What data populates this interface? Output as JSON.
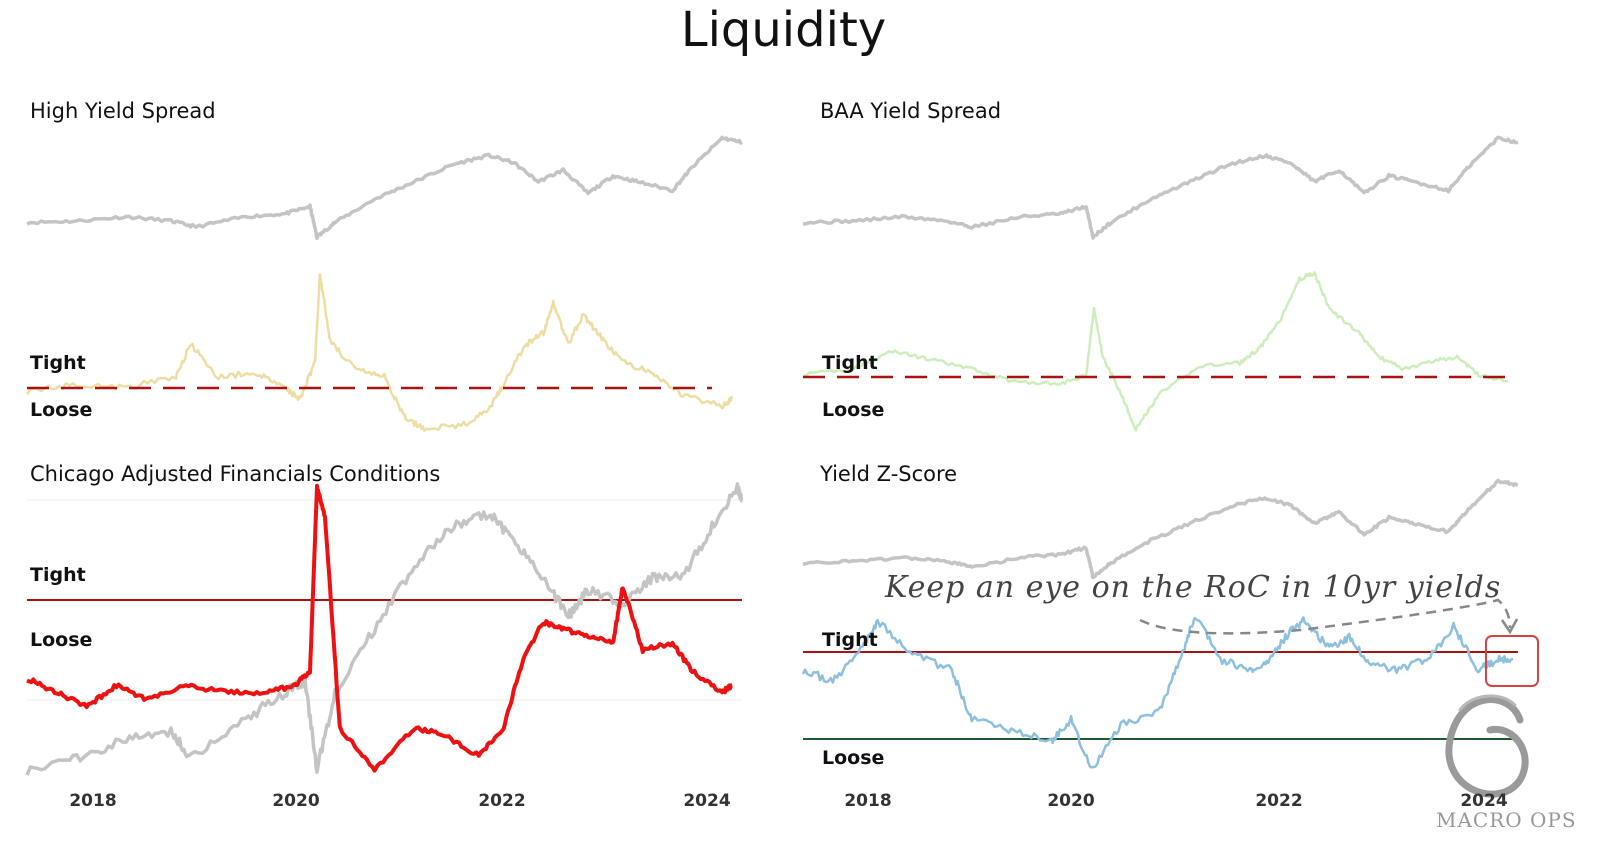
{
  "title": "Liquidity",
  "annotation": "Keep an eye on the RoC in 10yr yields",
  "logo": "MACRO OPS",
  "colors": {
    "price": "#c4c4c4",
    "hy": "#eedda3",
    "baa": "#cdeebb",
    "chicago": "#ee1111",
    "zscore": "#8cc0de",
    "dashed": "#aa1111",
    "tight_line": "#aa1111",
    "loose_line": "#1d5a2f",
    "highlight": "#d84343"
  },
  "chart_data": [
    {
      "type": "line",
      "title": "High Yield Spread",
      "x_ticks": [
        "2018",
        "2020",
        "2022",
        "2024"
      ],
      "labels": {
        "upper": "Tight",
        "lower": "Loose"
      },
      "xlim": [
        2017.3,
        2024.5
      ],
      "series": [
        {
          "values": [
            [
              2017.3,
              0.92
            ],
            [
              2017.8,
              0.93
            ],
            [
              2018.3,
              0.96
            ],
            [
              2018.75,
              0.93
            ],
            [
              2019.0,
              0.89
            ],
            [
              2019.5,
              0.96
            ],
            [
              2019.9,
              0.98
            ],
            [
              2020.15,
              1.03
            ],
            [
              2020.22,
              0.82
            ],
            [
              2020.4,
              0.92
            ],
            [
              2020.8,
              1.08
            ],
            [
              2021.2,
              1.2
            ],
            [
              2021.6,
              1.32
            ],
            [
              2021.95,
              1.38
            ],
            [
              2022.2,
              1.33
            ],
            [
              2022.45,
              1.2
            ],
            [
              2022.7,
              1.28
            ],
            [
              2022.95,
              1.12
            ],
            [
              2023.2,
              1.24
            ],
            [
              2023.45,
              1.2
            ],
            [
              2023.8,
              1.14
            ],
            [
              2024.0,
              1.3
            ],
            [
              2024.3,
              1.5
            ],
            [
              2024.5,
              1.47
            ]
          ]
        },
        {
          "values": [
            [
              2017.3,
              -0.1
            ],
            [
              2017.8,
              0.0
            ],
            [
              2018.3,
              -0.05
            ],
            [
              2018.8,
              0.1
            ],
            [
              2018.95,
              0.55
            ],
            [
              2019.2,
              0.1
            ],
            [
              2019.6,
              0.15
            ],
            [
              2019.9,
              -0.05
            ],
            [
              2020.05,
              -0.2
            ],
            [
              2020.2,
              0.3
            ],
            [
              2020.25,
              1.5
            ],
            [
              2020.35,
              0.6
            ],
            [
              2020.6,
              0.2
            ],
            [
              2020.9,
              0.1
            ],
            [
              2021.1,
              -0.45
            ],
            [
              2021.3,
              -0.6
            ],
            [
              2021.7,
              -0.55
            ],
            [
              2021.95,
              -0.35
            ],
            [
              2022.1,
              0.0
            ],
            [
              2022.3,
              0.5
            ],
            [
              2022.5,
              0.7
            ],
            [
              2022.6,
              1.1
            ],
            [
              2022.75,
              0.55
            ],
            [
              2022.9,
              0.95
            ],
            [
              2023.1,
              0.6
            ],
            [
              2023.3,
              0.3
            ],
            [
              2023.6,
              0.15
            ],
            [
              2023.9,
              -0.15
            ],
            [
              2024.3,
              -0.3
            ],
            [
              2024.4,
              -0.2
            ]
          ]
        }
      ]
    },
    {
      "type": "line",
      "title": "BAA Yield Spread",
      "x_ticks": [
        "2018",
        "2020",
        "2022",
        "2024"
      ],
      "labels": {
        "upper": "Tight",
        "lower": "Loose"
      },
      "xlim": [
        2017.3,
        2024.5
      ],
      "series": [
        {
          "values": [
            [
              2017.3,
              0.92
            ],
            [
              2017.8,
              0.93
            ],
            [
              2018.3,
              0.96
            ],
            [
              2018.75,
              0.93
            ],
            [
              2019.0,
              0.89
            ],
            [
              2019.5,
              0.96
            ],
            [
              2019.9,
              0.98
            ],
            [
              2020.15,
              1.03
            ],
            [
              2020.22,
              0.82
            ],
            [
              2020.4,
              0.92
            ],
            [
              2020.8,
              1.08
            ],
            [
              2021.2,
              1.2
            ],
            [
              2021.6,
              1.32
            ],
            [
              2021.95,
              1.38
            ],
            [
              2022.2,
              1.33
            ],
            [
              2022.45,
              1.2
            ],
            [
              2022.7,
              1.28
            ],
            [
              2022.95,
              1.12
            ],
            [
              2023.2,
              1.24
            ],
            [
              2023.45,
              1.2
            ],
            [
              2023.8,
              1.14
            ],
            [
              2024.0,
              1.3
            ],
            [
              2024.3,
              1.5
            ],
            [
              2024.5,
              1.47
            ]
          ]
        },
        {
          "values": [
            [
              2017.3,
              0.0
            ],
            [
              2017.8,
              0.1
            ],
            [
              2018.2,
              0.4
            ],
            [
              2018.6,
              0.25
            ],
            [
              2019.0,
              0.1
            ],
            [
              2019.4,
              -0.1
            ],
            [
              2019.9,
              -0.15
            ],
            [
              2020.15,
              0.0
            ],
            [
              2020.23,
              1.1
            ],
            [
              2020.32,
              0.3
            ],
            [
              2020.5,
              -0.3
            ],
            [
              2020.65,
              -0.9
            ],
            [
              2020.9,
              -0.3
            ],
            [
              2021.3,
              0.15
            ],
            [
              2021.7,
              0.2
            ],
            [
              2021.9,
              0.45
            ],
            [
              2022.1,
              0.9
            ],
            [
              2022.3,
              1.6
            ],
            [
              2022.45,
              1.7
            ],
            [
              2022.6,
              1.1
            ],
            [
              2022.9,
              0.7
            ],
            [
              2023.1,
              0.3
            ],
            [
              2023.35,
              0.1
            ],
            [
              2023.7,
              0.25
            ],
            [
              2023.9,
              0.3
            ],
            [
              2024.1,
              0.0
            ],
            [
              2024.4,
              -0.1
            ]
          ]
        }
      ]
    },
    {
      "type": "line",
      "title": "Chicago Adjusted Financials Conditions",
      "x_ticks": [
        "2018",
        "2020",
        "2022",
        "2024"
      ],
      "labels": {
        "upper": "Tight",
        "lower": "Loose"
      },
      "xlim": [
        2017.3,
        2024.5
      ],
      "series": [
        {
          "values": [
            [
              2017.3,
              0.0
            ],
            [
              2017.8,
              0.05
            ],
            [
              2018.3,
              0.12
            ],
            [
              2018.75,
              0.15
            ],
            [
              2018.95,
              0.05
            ],
            [
              2019.5,
              0.2
            ],
            [
              2019.9,
              0.3
            ],
            [
              2020.1,
              0.35
            ],
            [
              2020.22,
              0.0
            ],
            [
              2020.4,
              0.3
            ],
            [
              2020.8,
              0.55
            ],
            [
              2021.2,
              0.8
            ],
            [
              2021.6,
              0.95
            ],
            [
              2021.95,
              1.0
            ],
            [
              2022.2,
              0.9
            ],
            [
              2022.5,
              0.75
            ],
            [
              2022.75,
              0.6
            ],
            [
              2022.95,
              0.7
            ],
            [
              2023.3,
              0.65
            ],
            [
              2023.6,
              0.75
            ],
            [
              2023.9,
              0.75
            ],
            [
              2024.2,
              0.95
            ],
            [
              2024.45,
              1.1
            ],
            [
              2024.5,
              1.05
            ]
          ]
        },
        {
          "values": [
            [
              2017.3,
              -0.85
            ],
            [
              2017.6,
              -0.95
            ],
            [
              2017.9,
              -1.05
            ],
            [
              2018.2,
              -0.9
            ],
            [
              2018.5,
              -1.0
            ],
            [
              2018.9,
              -0.9
            ],
            [
              2019.3,
              -0.95
            ],
            [
              2019.7,
              -0.95
            ],
            [
              2020.0,
              -0.9
            ],
            [
              2020.15,
              -0.8
            ],
            [
              2020.22,
              0.5
            ],
            [
              2020.3,
              0.3
            ],
            [
              2020.45,
              -1.2
            ],
            [
              2020.8,
              -1.5
            ],
            [
              2021.2,
              -1.2
            ],
            [
              2021.5,
              -1.25
            ],
            [
              2021.85,
              -1.4
            ],
            [
              2022.1,
              -1.2
            ],
            [
              2022.3,
              -0.7
            ],
            [
              2022.5,
              -0.45
            ],
            [
              2022.7,
              -0.5
            ],
            [
              2022.95,
              -0.55
            ],
            [
              2023.2,
              -0.6
            ],
            [
              2023.3,
              -0.2
            ],
            [
              2023.5,
              -0.65
            ],
            [
              2023.8,
              -0.6
            ],
            [
              2024.0,
              -0.8
            ],
            [
              2024.3,
              -0.95
            ],
            [
              2024.4,
              -0.9
            ]
          ]
        }
      ]
    },
    {
      "type": "line",
      "title": "Yield Z-Score",
      "x_ticks": [
        "2018",
        "2020",
        "2022",
        "2024"
      ],
      "labels": {
        "upper": "Tight",
        "lower": "Loose"
      },
      "xlim": [
        2017.3,
        2024.5
      ],
      "series": [
        {
          "values": [
            [
              2017.3,
              0.92
            ],
            [
              2017.8,
              0.93
            ],
            [
              2018.3,
              0.96
            ],
            [
              2018.75,
              0.93
            ],
            [
              2019.0,
              0.89
            ],
            [
              2019.5,
              0.96
            ],
            [
              2019.9,
              0.98
            ],
            [
              2020.15,
              1.03
            ],
            [
              2020.22,
              0.82
            ],
            [
              2020.4,
              0.92
            ],
            [
              2020.8,
              1.08
            ],
            [
              2021.2,
              1.2
            ],
            [
              2021.6,
              1.32
            ],
            [
              2021.95,
              1.38
            ],
            [
              2022.2,
              1.33
            ],
            [
              2022.45,
              1.2
            ],
            [
              2022.7,
              1.28
            ],
            [
              2022.95,
              1.12
            ],
            [
              2023.2,
              1.24
            ],
            [
              2023.45,
              1.2
            ],
            [
              2023.8,
              1.14
            ],
            [
              2024.0,
              1.3
            ],
            [
              2024.3,
              1.5
            ],
            [
              2024.5,
              1.47
            ]
          ]
        },
        {
          "values": [
            [
              2017.3,
              0.4
            ],
            [
              2017.6,
              0.2
            ],
            [
              2017.9,
              0.8
            ],
            [
              2018.05,
              1.3
            ],
            [
              2018.4,
              0.7
            ],
            [
              2018.8,
              0.4
            ],
            [
              2019.0,
              -0.5
            ],
            [
              2019.4,
              -0.7
            ],
            [
              2019.8,
              -0.9
            ],
            [
              2020.0,
              -0.5
            ],
            [
              2020.2,
              -1.4
            ],
            [
              2020.5,
              -0.6
            ],
            [
              2020.9,
              -0.3
            ],
            [
              2021.1,
              0.6
            ],
            [
              2021.25,
              1.4
            ],
            [
              2021.5,
              0.6
            ],
            [
              2021.8,
              0.4
            ],
            [
              2022.0,
              0.6
            ],
            [
              2022.2,
              1.1
            ],
            [
              2022.35,
              1.3
            ],
            [
              2022.6,
              0.8
            ],
            [
              2022.8,
              1.0
            ],
            [
              2023.0,
              0.5
            ],
            [
              2023.3,
              0.4
            ],
            [
              2023.6,
              0.6
            ],
            [
              2023.85,
              1.2
            ],
            [
              2024.1,
              0.4
            ],
            [
              2024.3,
              0.6
            ],
            [
              2024.45,
              0.6
            ]
          ]
        }
      ]
    }
  ]
}
